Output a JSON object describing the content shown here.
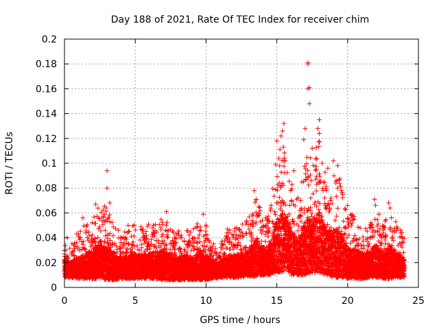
{
  "chart_data": {
    "type": "scatter",
    "title": "Day 188 of 2021, Rate Of TEC Index for receiver chim",
    "xlabel": "GPS time / hours",
    "ylabel": "ROTI / TECUs",
    "xlim": [
      0,
      25
    ],
    "ylim": [
      0,
      0.2
    ],
    "x_ticks": [
      0,
      5,
      10,
      15,
      20,
      25
    ],
    "x_tick_labels": [
      "0",
      "5",
      "10",
      "15",
      "20",
      "25"
    ],
    "y_ticks": [
      0,
      0.02,
      0.04,
      0.06,
      0.08,
      0.1,
      0.12,
      0.14,
      0.16,
      0.18,
      0.2
    ],
    "y_tick_labels": [
      "0",
      "0.02",
      "0.04",
      "0.06",
      "0.08",
      "0.1",
      "0.12",
      "0.14",
      "0.16",
      "0.18",
      "0.2"
    ],
    "grid": true,
    "marker": "+",
    "marker_color": "#ff0000",
    "series": [
      {
        "name": "ROTI",
        "envelope": {
          "hours": [
            0,
            0.5,
            1,
            1.5,
            2,
            2.5,
            3,
            3.5,
            4,
            4.5,
            5,
            5.5,
            6,
            6.5,
            7,
            7.5,
            8,
            8.5,
            9,
            9.5,
            10,
            10.5,
            11,
            11.5,
            12,
            12.5,
            13,
            13.5,
            14,
            14.5,
            15,
            15.5,
            16,
            16.5,
            17,
            17.5,
            18,
            18.5,
            19,
            19.5,
            20,
            20.5,
            21,
            21.5,
            22,
            22.5,
            23,
            23.5,
            24
          ],
          "low": [
            0.008,
            0.008,
            0.007,
            0.007,
            0.007,
            0.007,
            0.006,
            0.006,
            0.007,
            0.007,
            0.007,
            0.007,
            0.007,
            0.007,
            0.006,
            0.006,
            0.006,
            0.006,
            0.006,
            0.006,
            0.006,
            0.007,
            0.008,
            0.008,
            0.008,
            0.008,
            0.009,
            0.009,
            0.01,
            0.01,
            0.012,
            0.012,
            0.01,
            0.01,
            0.01,
            0.012,
            0.012,
            0.01,
            0.008,
            0.008,
            0.007,
            0.007,
            0.007,
            0.008,
            0.008,
            0.007,
            0.007,
            0.008,
            0.008
          ],
          "high": [
            0.04,
            0.036,
            0.046,
            0.052,
            0.06,
            0.066,
            0.066,
            0.05,
            0.044,
            0.046,
            0.052,
            0.048,
            0.052,
            0.055,
            0.058,
            0.052,
            0.046,
            0.048,
            0.045,
            0.056,
            0.05,
            0.036,
            0.034,
            0.047,
            0.048,
            0.052,
            0.056,
            0.074,
            0.06,
            0.062,
            0.108,
            0.118,
            0.09,
            0.066,
            0.108,
            0.104,
            0.12,
            0.09,
            0.094,
            0.088,
            0.058,
            0.06,
            0.054,
            0.05,
            0.068,
            0.054,
            0.066,
            0.05,
            0.042
          ]
        },
        "peaks": [
          {
            "x": 3.0,
            "y": 0.094
          },
          {
            "x": 3.0,
            "y": 0.08
          },
          {
            "x": 3.2,
            "y": 0.068
          },
          {
            "x": 2.2,
            "y": 0.067
          },
          {
            "x": 1.3,
            "y": 0.056
          },
          {
            "x": 7.2,
            "y": 0.061
          },
          {
            "x": 9.8,
            "y": 0.059
          },
          {
            "x": 13.4,
            "y": 0.078
          },
          {
            "x": 15.0,
            "y": 0.118
          },
          {
            "x": 15.3,
            "y": 0.122
          },
          {
            "x": 15.5,
            "y": 0.132
          },
          {
            "x": 15.4,
            "y": 0.126
          },
          {
            "x": 15.2,
            "y": 0.098
          },
          {
            "x": 15.6,
            "y": 0.102
          },
          {
            "x": 16.2,
            "y": 0.094
          },
          {
            "x": 16.5,
            "y": 0.072
          },
          {
            "x": 17.2,
            "y": 0.181
          },
          {
            "x": 17.2,
            "y": 0.18
          },
          {
            "x": 17.3,
            "y": 0.161
          },
          {
            "x": 17.2,
            "y": 0.16
          },
          {
            "x": 17.3,
            "y": 0.148
          },
          {
            "x": 17.0,
            "y": 0.128
          },
          {
            "x": 16.9,
            "y": 0.119
          },
          {
            "x": 17.5,
            "y": 0.112
          },
          {
            "x": 18.0,
            "y": 0.135
          },
          {
            "x": 17.9,
            "y": 0.128
          },
          {
            "x": 18.0,
            "y": 0.124
          },
          {
            "x": 18.2,
            "y": 0.1
          },
          {
            "x": 18.6,
            "y": 0.096
          },
          {
            "x": 19.0,
            "y": 0.102
          },
          {
            "x": 19.3,
            "y": 0.098
          },
          {
            "x": 19.2,
            "y": 0.086
          },
          {
            "x": 20.0,
            "y": 0.066
          },
          {
            "x": 21.9,
            "y": 0.071
          },
          {
            "x": 22.9,
            "y": 0.068
          },
          {
            "x": 23.0,
            "y": 0.064
          },
          {
            "x": 23.4,
            "y": 0.053
          },
          {
            "x": 0.2,
            "y": 0.04
          },
          {
            "x": 4.5,
            "y": 0.05
          },
          {
            "x": 11.5,
            "y": 0.047
          }
        ]
      }
    ]
  }
}
